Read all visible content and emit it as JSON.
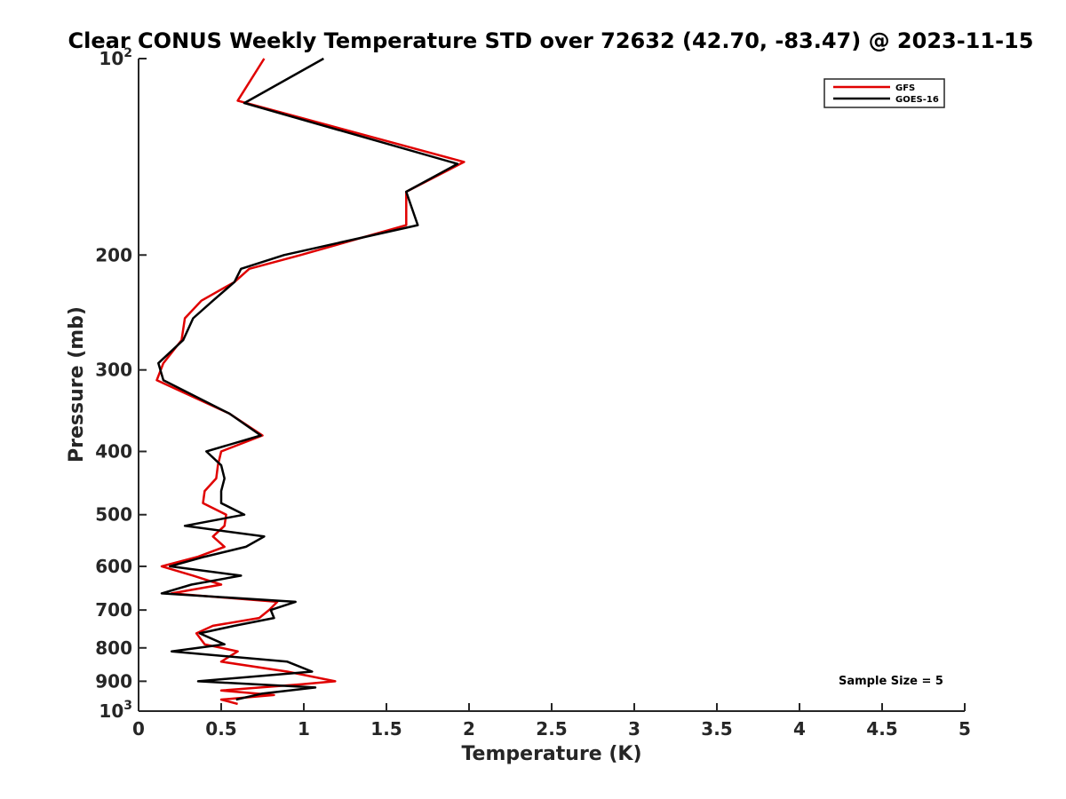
{
  "chart_data": {
    "type": "line",
    "title": "Clear CONUS Weekly Temperature STD over 72632 (42.70, -83.47) @ 2023-11-15",
    "xlabel": "Temperature (K)",
    "ylabel": "Pressure (mb)",
    "xlim": [
      0,
      5
    ],
    "ylim": [
      100,
      1000
    ],
    "yscale": "log",
    "y_reversed": true,
    "grid": false,
    "legend_position": "top-right",
    "x_ticks": [
      "0",
      "0.5",
      "1",
      "1.5",
      "2",
      "2.5",
      "3",
      "3.5",
      "4",
      "4.5",
      "5"
    ],
    "y_ticks": [
      {
        "value": 100,
        "label": "10",
        "sup": "2"
      },
      {
        "value": 200,
        "label": "200",
        "sup": ""
      },
      {
        "value": 300,
        "label": "300",
        "sup": ""
      },
      {
        "value": 400,
        "label": "400",
        "sup": ""
      },
      {
        "value": 500,
        "label": "500",
        "sup": ""
      },
      {
        "value": 600,
        "label": "600",
        "sup": ""
      },
      {
        "value": 700,
        "label": "700",
        "sup": ""
      },
      {
        "value": 800,
        "label": "800",
        "sup": ""
      },
      {
        "value": 900,
        "label": "900",
        "sup": ""
      },
      {
        "value": 1000,
        "label": "10",
        "sup": "3"
      }
    ],
    "annotation": "Sample Size = 5",
    "series": [
      {
        "name": "GFS",
        "color": "#e00000",
        "points": [
          [
            0.76,
            100
          ],
          [
            0.6,
            116
          ],
          [
            1.97,
            144
          ],
          [
            1.62,
            160
          ],
          [
            1.62,
            180
          ],
          [
            0.98,
            200
          ],
          [
            0.67,
            210
          ],
          [
            0.58,
            220
          ],
          [
            0.38,
            235
          ],
          [
            0.28,
            250
          ],
          [
            0.26,
            270
          ],
          [
            0.15,
            293
          ],
          [
            0.11,
            311
          ],
          [
            0.55,
            350
          ],
          [
            0.75,
            378
          ],
          [
            0.5,
            400
          ],
          [
            0.48,
            420
          ],
          [
            0.47,
            440
          ],
          [
            0.4,
            460
          ],
          [
            0.39,
            480
          ],
          [
            0.53,
            500
          ],
          [
            0.52,
            520
          ],
          [
            0.45,
            540
          ],
          [
            0.52,
            560
          ],
          [
            0.36,
            580
          ],
          [
            0.14,
            600
          ],
          [
            0.33,
            620
          ],
          [
            0.5,
            640
          ],
          [
            0.2,
            660
          ],
          [
            0.84,
            680
          ],
          [
            0.79,
            700
          ],
          [
            0.73,
            720
          ],
          [
            0.45,
            740
          ],
          [
            0.35,
            760
          ],
          [
            0.4,
            790
          ],
          [
            0.6,
            810
          ],
          [
            0.5,
            840
          ],
          [
            0.9,
            870
          ],
          [
            1.19,
            900
          ],
          [
            0.98,
            910
          ],
          [
            0.5,
            930
          ],
          [
            0.82,
            945
          ],
          [
            0.5,
            960
          ],
          [
            0.6,
            975
          ]
        ]
      },
      {
        "name": "GOES-16",
        "color": "#000000",
        "points": [
          [
            1.12,
            100
          ],
          [
            0.64,
            117
          ],
          [
            1.93,
            145
          ],
          [
            1.62,
            160
          ],
          [
            1.69,
            180
          ],
          [
            0.88,
            200
          ],
          [
            0.62,
            210
          ],
          [
            0.58,
            220
          ],
          [
            0.45,
            235
          ],
          [
            0.33,
            250
          ],
          [
            0.27,
            270
          ],
          [
            0.12,
            293
          ],
          [
            0.15,
            311
          ],
          [
            0.55,
            350
          ],
          [
            0.74,
            378
          ],
          [
            0.41,
            400
          ],
          [
            0.5,
            420
          ],
          [
            0.52,
            440
          ],
          [
            0.5,
            460
          ],
          [
            0.5,
            480
          ],
          [
            0.64,
            500
          ],
          [
            0.28,
            520
          ],
          [
            0.76,
            540
          ],
          [
            0.65,
            560
          ],
          [
            0.4,
            580
          ],
          [
            0.19,
            600
          ],
          [
            0.62,
            620
          ],
          [
            0.32,
            640
          ],
          [
            0.14,
            660
          ],
          [
            0.95,
            680
          ],
          [
            0.8,
            700
          ],
          [
            0.82,
            720
          ],
          [
            0.58,
            740
          ],
          [
            0.37,
            760
          ],
          [
            0.52,
            790
          ],
          [
            0.2,
            810
          ],
          [
            0.9,
            840
          ],
          [
            1.05,
            870
          ],
          [
            0.36,
            900
          ],
          [
            1.07,
            920
          ],
          [
            0.75,
            940
          ],
          [
            0.59,
            960
          ]
        ]
      }
    ]
  }
}
